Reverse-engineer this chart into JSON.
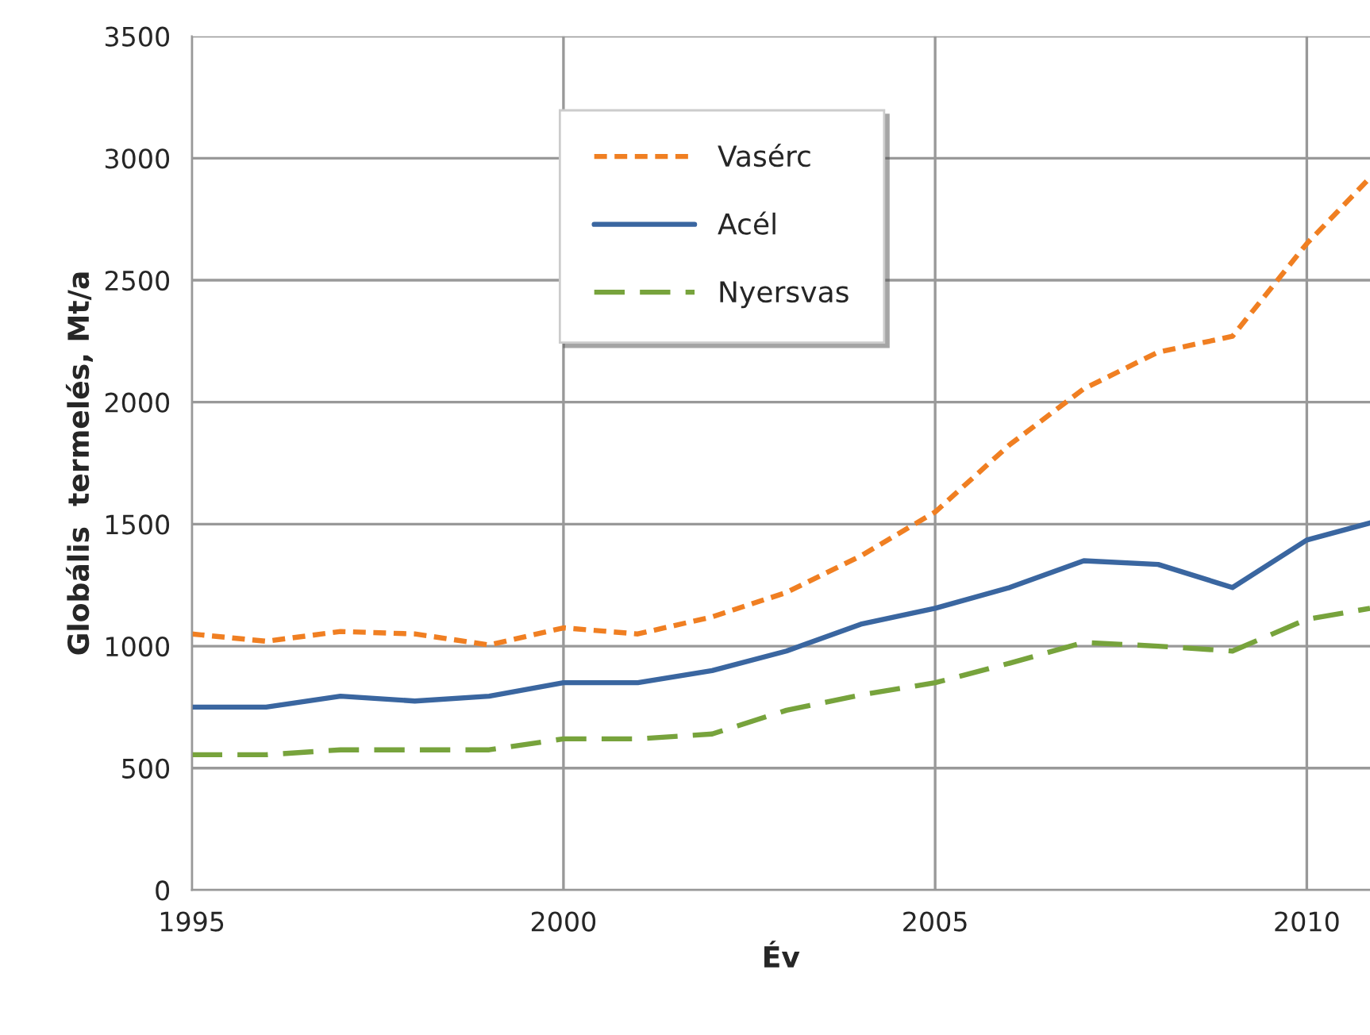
{
  "chart_data": {
    "type": "line",
    "xlabel": "Év",
    "ylabel": "Globális  termelés, Mt/a",
    "x": [
      1995,
      1996,
      1997,
      1998,
      1999,
      2000,
      2001,
      2002,
      2003,
      2004,
      2005,
      2006,
      2007,
      2008,
      2009,
      2010,
      2010.85
    ],
    "series": [
      {
        "name": "Vasérc",
        "color": "#f07f22",
        "line_style": "dotted",
        "values": [
          1050,
          1020,
          1060,
          1050,
          1005,
          1075,
          1050,
          1120,
          1220,
          1370,
          1550,
          1825,
          2055,
          2205,
          2270,
          2650,
          2920
        ]
      },
      {
        "name": "Acél",
        "color": "#3a66a0",
        "line_style": "solid",
        "values": [
          750,
          750,
          795,
          775,
          795,
          850,
          850,
          900,
          980,
          1090,
          1155,
          1240,
          1350,
          1335,
          1240,
          1435,
          1505
        ]
      },
      {
        "name": "Nyersvas",
        "color": "#77a33c",
        "line_style": "dashed",
        "values": [
          555,
          555,
          575,
          575,
          575,
          620,
          620,
          640,
          737,
          800,
          850,
          930,
          1015,
          1000,
          980,
          1110,
          1155
        ]
      }
    ],
    "xlim": [
      1995,
      2010.85
    ],
    "ylim": [
      0,
      3500
    ],
    "xticks": [
      1995,
      2000,
      2005,
      2010
    ],
    "yticks": [
      0,
      500,
      1000,
      1500,
      2000,
      2500,
      3000,
      3500
    ],
    "grid": true,
    "legend": "top"
  }
}
